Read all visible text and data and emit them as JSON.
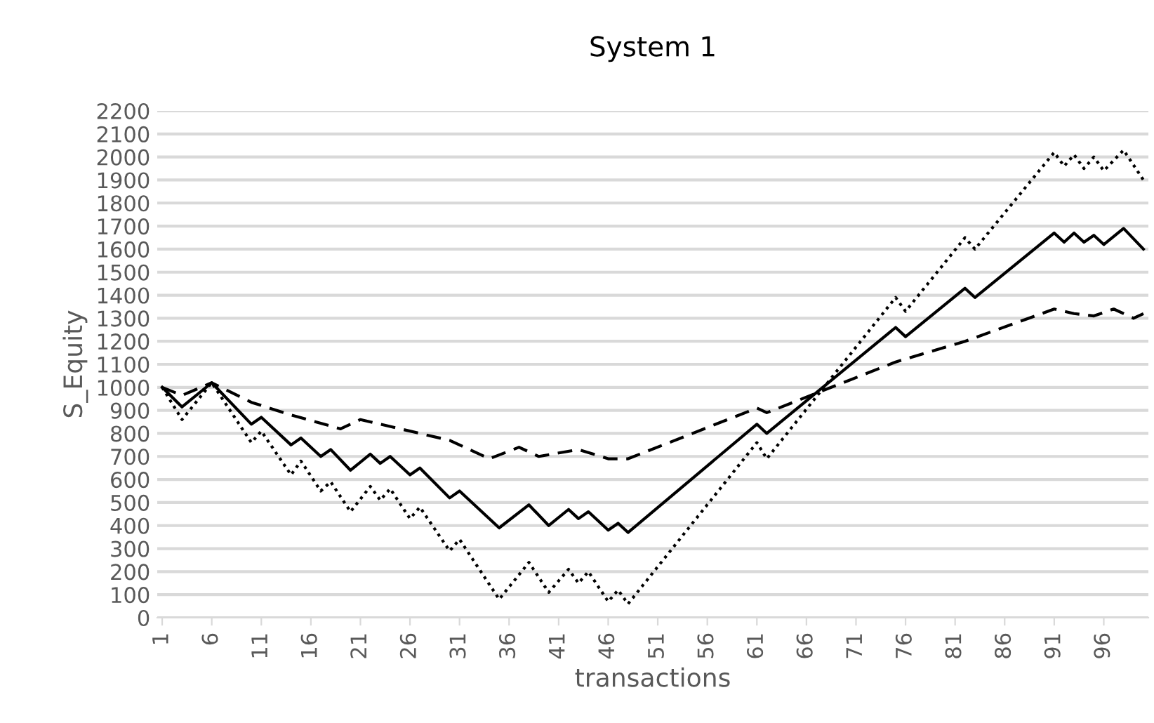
{
  "chart_data": {
    "type": "line",
    "title": "System 1",
    "xlabel": "transactions",
    "ylabel": "S_Equity",
    "xlim": [
      0.5,
      100.5
    ],
    "xticks": [
      1,
      6,
      11,
      16,
      21,
      26,
      31,
      36,
      41,
      46,
      51,
      56,
      61,
      66,
      71,
      76,
      81,
      86,
      91,
      96
    ],
    "ylim": [
      0,
      2200
    ],
    "yticks": [
      0,
      100,
      200,
      300,
      400,
      500,
      600,
      700,
      800,
      900,
      1000,
      1100,
      1200,
      1300,
      1400,
      1500,
      1600,
      1700,
      1800,
      1900,
      2000,
      2100,
      2200
    ],
    "grid": "y",
    "marker": "none",
    "series": [
      {
        "color": "#000000",
        "line_style": "solid",
        "x": [
          1,
          3,
          6,
          10,
          11,
          14,
          15,
          17,
          18,
          20,
          22,
          23,
          24,
          26,
          27,
          30,
          31,
          35,
          38,
          40,
          42,
          43,
          44,
          46,
          47,
          48,
          61,
          62,
          75,
          76,
          82,
          83,
          91,
          92,
          93,
          94,
          95,
          96,
          98,
          100
        ],
        "values": [
          1000,
          915,
          1020,
          840,
          870,
          750,
          780,
          700,
          730,
          640,
          710,
          670,
          700,
          620,
          650,
          520,
          550,
          390,
          490,
          400,
          470,
          430,
          460,
          380,
          410,
          370,
          840,
          800,
          1260,
          1220,
          1430,
          1390,
          1670,
          1630,
          1670,
          1630,
          1660,
          1620,
          1690,
          1600
        ]
      },
      {
        "color": "#000000",
        "line_style": "dashed",
        "x": [
          1,
          3,
          6,
          10,
          14,
          19,
          21,
          23,
          30,
          34,
          37,
          39,
          43,
          46,
          48,
          61,
          62,
          75,
          82,
          91,
          93,
          95,
          97,
          99,
          100
        ],
        "values": [
          1000,
          965,
          1020,
          935,
          880,
          820,
          860,
          840,
          770,
          690,
          740,
          700,
          730,
          690,
          690,
          910,
          890,
          1110,
          1200,
          1340,
          1320,
          1310,
          1340,
          1300,
          1320
        ]
      },
      {
        "color": "#000000",
        "line_style": "dotted",
        "x": [
          1,
          3,
          6,
          10,
          11,
          14,
          15,
          17,
          18,
          20,
          22,
          23,
          24,
          26,
          27,
          30,
          31,
          35,
          38,
          40,
          42,
          43,
          44,
          46,
          47,
          48,
          61,
          62,
          75,
          76,
          82,
          83,
          91,
          92,
          93,
          94,
          95,
          96,
          98,
          100
        ],
        "values": [
          1000,
          860,
          1020,
          760,
          810,
          620,
          680,
          550,
          590,
          460,
          570,
          510,
          560,
          430,
          480,
          290,
          340,
          80,
          240,
          110,
          210,
          150,
          200,
          70,
          120,
          60,
          760,
          690,
          1390,
          1330,
          1650,
          1600,
          2020,
          1960,
          2010,
          1950,
          2000,
          1940,
          2030,
          1900
        ]
      }
    ]
  }
}
